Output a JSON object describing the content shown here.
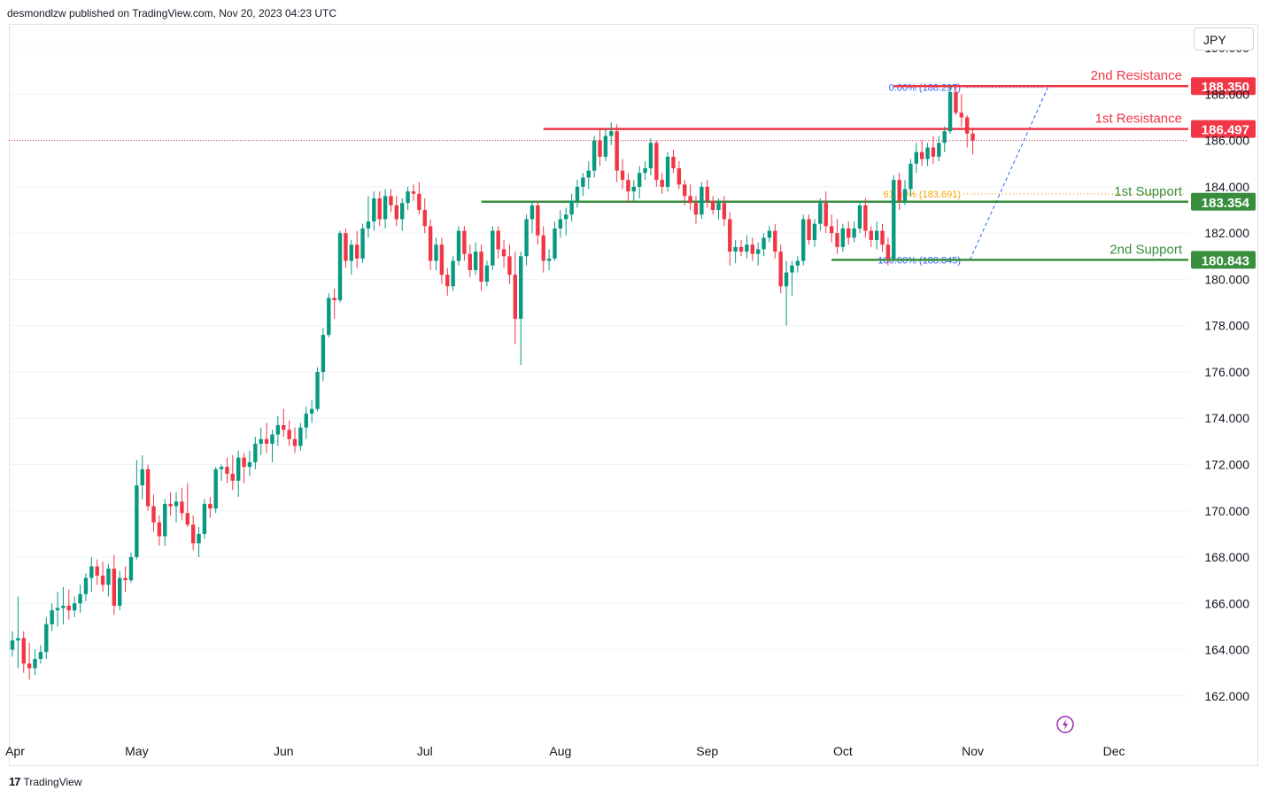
{
  "header": {
    "publisher": "desmondlzw published on TradingView.com, Nov 20, 2023 04:23 UTC"
  },
  "currency": "JPY",
  "footer": {
    "brand": "TradingView",
    "logo": "17"
  },
  "colors": {
    "up": "#089981",
    "down": "#f23645",
    "resistance": "#f23645",
    "support": "#388e3c",
    "fib": "#2962ff",
    "fib_mid": "#f7a600",
    "grid": "#f0f3fa"
  },
  "chart_data": {
    "type": "candlestick",
    "symbol_quote": "JPY",
    "ylim": [
      160.5,
      191.0
    ],
    "y_ticks": [
      "162.000",
      "164.000",
      "166.000",
      "168.000",
      "170.000",
      "172.000",
      "174.000",
      "176.000",
      "178.000",
      "180.000",
      "182.000",
      "184.000",
      "186.000",
      "188.000",
      "190.000"
    ],
    "x_labels": [
      "Apr",
      "May",
      "Jun",
      "Jul",
      "Aug",
      "Sep",
      "Oct",
      "Nov",
      "Dec"
    ],
    "last_price": 186.0,
    "levels": [
      {
        "name": "2nd Resistance",
        "value": "188.350",
        "kind": "resistance",
        "from_index": 156
      },
      {
        "name": "1st Resistance",
        "value": "186.497",
        "kind": "resistance",
        "from_index": 94
      },
      {
        "name": "1st Support",
        "value": "183.354",
        "kind": "support",
        "from_index": 83
      },
      {
        "name": "2nd Support",
        "value": "180.843",
        "kind": "support",
        "from_index": 145
      }
    ],
    "fib": [
      {
        "label": "0.00% (188.297)",
        "value": 188.297
      },
      {
        "label": "61.80% (183.691)",
        "value": 183.691
      },
      {
        "label": "100.00% (180.845)",
        "value": 180.845
      }
    ],
    "candles": [
      [
        164.0,
        164.8,
        163.7,
        164.4
      ],
      [
        164.4,
        166.3,
        163.2,
        164.5
      ],
      [
        164.5,
        164.8,
        163.0,
        163.4
      ],
      [
        163.4,
        164.3,
        162.7,
        163.2
      ],
      [
        163.2,
        164.0,
        162.9,
        163.6
      ],
      [
        163.6,
        164.2,
        163.4,
        163.9
      ],
      [
        163.9,
        165.4,
        163.6,
        165.1
      ],
      [
        165.1,
        166.0,
        164.8,
        165.7
      ],
      [
        165.7,
        166.5,
        165.0,
        165.8
      ],
      [
        165.8,
        166.7,
        165.1,
        165.9
      ],
      [
        165.9,
        166.6,
        165.3,
        165.7
      ],
      [
        165.7,
        166.3,
        165.4,
        166.0
      ],
      [
        166.0,
        166.8,
        165.6,
        166.4
      ],
      [
        166.4,
        167.3,
        166.1,
        167.1
      ],
      [
        167.1,
        168.0,
        166.5,
        167.6
      ],
      [
        167.6,
        167.9,
        166.8,
        167.2
      ],
      [
        167.2,
        167.8,
        166.5,
        166.8
      ],
      [
        166.8,
        167.7,
        166.3,
        167.5
      ],
      [
        167.5,
        168.1,
        165.5,
        165.9
      ],
      [
        165.9,
        167.4,
        165.7,
        167.1
      ],
      [
        167.1,
        167.6,
        166.5,
        167.0
      ],
      [
        167.0,
        168.2,
        166.9,
        168.0
      ],
      [
        168.0,
        172.2,
        167.9,
        171.1
      ],
      [
        171.1,
        172.4,
        170.5,
        171.8
      ],
      [
        171.8,
        172.0,
        170.0,
        170.2
      ],
      [
        170.2,
        170.7,
        169.1,
        169.5
      ],
      [
        169.5,
        169.8,
        168.5,
        168.9
      ],
      [
        168.9,
        170.5,
        168.5,
        170.3
      ],
      [
        170.3,
        170.8,
        169.8,
        170.2
      ],
      [
        170.2,
        170.8,
        169.5,
        170.4
      ],
      [
        170.4,
        171.0,
        169.6,
        169.9
      ],
      [
        169.9,
        171.2,
        169.3,
        169.4
      ],
      [
        169.4,
        169.8,
        168.3,
        168.6
      ],
      [
        168.6,
        169.3,
        168.0,
        169.0
      ],
      [
        169.0,
        170.5,
        168.8,
        170.3
      ],
      [
        170.3,
        170.6,
        169.7,
        170.1
      ],
      [
        170.1,
        171.9,
        169.9,
        171.8
      ],
      [
        171.8,
        172.0,
        171.3,
        171.9
      ],
      [
        171.9,
        172.3,
        171.2,
        171.6
      ],
      [
        171.6,
        172.4,
        170.9,
        171.3
      ],
      [
        171.3,
        172.6,
        170.6,
        172.3
      ],
      [
        172.3,
        172.5,
        171.2,
        171.9
      ],
      [
        171.9,
        172.6,
        171.5,
        172.1
      ],
      [
        172.1,
        173.2,
        171.8,
        172.9
      ],
      [
        172.9,
        173.6,
        172.4,
        173.1
      ],
      [
        173.1,
        173.8,
        172.5,
        172.9
      ],
      [
        172.9,
        173.5,
        172.1,
        173.3
      ],
      [
        173.3,
        174.1,
        172.8,
        173.7
      ],
      [
        173.7,
        174.4,
        173.2,
        173.5
      ],
      [
        173.5,
        173.9,
        172.8,
        173.1
      ],
      [
        173.1,
        173.6,
        172.5,
        172.8
      ],
      [
        172.8,
        173.8,
        172.6,
        173.6
      ],
      [
        173.6,
        174.5,
        173.1,
        174.2
      ],
      [
        174.2,
        174.8,
        173.8,
        174.4
      ],
      [
        174.4,
        176.2,
        174.3,
        176.0
      ],
      [
        176.0,
        177.9,
        175.6,
        177.6
      ],
      [
        177.6,
        179.4,
        177.5,
        179.2
      ],
      [
        179.2,
        179.6,
        178.3,
        179.1
      ],
      [
        179.1,
        182.1,
        179.0,
        182.0
      ],
      [
        182.0,
        182.2,
        180.5,
        180.8
      ],
      [
        180.8,
        181.7,
        180.2,
        181.5
      ],
      [
        181.5,
        182.1,
        180.5,
        180.9
      ],
      [
        180.9,
        182.4,
        180.7,
        182.2
      ],
      [
        182.2,
        183.6,
        181.8,
        182.5
      ],
      [
        182.5,
        183.8,
        182.1,
        183.5
      ],
      [
        183.5,
        183.8,
        182.3,
        182.6
      ],
      [
        182.6,
        183.9,
        182.2,
        183.6
      ],
      [
        183.6,
        183.9,
        182.9,
        183.2
      ],
      [
        183.2,
        183.6,
        182.3,
        182.6
      ],
      [
        182.6,
        183.5,
        182.1,
        183.3
      ],
      [
        183.3,
        184.0,
        183.0,
        183.8
      ],
      [
        183.8,
        184.1,
        183.4,
        183.7
      ],
      [
        183.7,
        184.2,
        182.8,
        183.0
      ],
      [
        183.0,
        183.5,
        182.0,
        182.3
      ],
      [
        182.3,
        182.6,
        180.4,
        180.8
      ],
      [
        180.8,
        181.8,
        180.4,
        181.5
      ],
      [
        181.5,
        181.8,
        179.8,
        180.2
      ],
      [
        180.2,
        180.5,
        179.3,
        179.7
      ],
      [
        179.7,
        181.0,
        179.5,
        180.8
      ],
      [
        180.8,
        182.3,
        180.6,
        182.1
      ],
      [
        182.1,
        182.3,
        180.8,
        181.1
      ],
      [
        181.1,
        181.5,
        180.1,
        180.4
      ],
      [
        180.4,
        181.6,
        180.2,
        181.2
      ],
      [
        181.2,
        181.5,
        179.5,
        179.9
      ],
      [
        179.9,
        180.8,
        179.7,
        180.6
      ],
      [
        180.6,
        182.3,
        180.4,
        182.1
      ],
      [
        182.1,
        182.3,
        180.9,
        181.3
      ],
      [
        181.3,
        181.7,
        180.5,
        181.0
      ],
      [
        181.0,
        181.5,
        179.8,
        180.2
      ],
      [
        180.2,
        181.2,
        177.2,
        178.3
      ],
      [
        178.3,
        181.2,
        176.3,
        181.0
      ],
      [
        181.0,
        182.8,
        180.6,
        182.6
      ],
      [
        182.6,
        183.4,
        182.0,
        183.2
      ],
      [
        183.2,
        183.4,
        181.5,
        181.9
      ],
      [
        181.9,
        182.3,
        180.3,
        180.8
      ],
      [
        180.8,
        181.3,
        180.4,
        180.9
      ],
      [
        180.9,
        182.5,
        180.8,
        182.2
      ],
      [
        182.2,
        183.0,
        181.8,
        182.6
      ],
      [
        182.6,
        183.1,
        181.9,
        182.8
      ],
      [
        182.8,
        183.7,
        182.5,
        183.4
      ],
      [
        183.4,
        184.3,
        183.1,
        184.0
      ],
      [
        184.0,
        184.6,
        183.6,
        184.4
      ],
      [
        184.4,
        185.1,
        183.9,
        184.7
      ],
      [
        184.7,
        186.2,
        184.4,
        186.0
      ],
      [
        186.0,
        186.5,
        184.9,
        185.3
      ],
      [
        185.3,
        186.5,
        185.1,
        186.2
      ],
      [
        186.2,
        186.8,
        185.8,
        186.4
      ],
      [
        186.4,
        186.7,
        184.2,
        184.7
      ],
      [
        184.7,
        185.2,
        183.9,
        184.3
      ],
      [
        184.3,
        184.6,
        183.3,
        183.8
      ],
      [
        183.8,
        184.3,
        183.4,
        184.0
      ],
      [
        184.0,
        184.9,
        183.5,
        184.6
      ],
      [
        184.6,
        185.1,
        184.3,
        184.8
      ],
      [
        184.8,
        186.1,
        184.5,
        185.9
      ],
      [
        185.9,
        186.0,
        184.0,
        184.3
      ],
      [
        184.3,
        184.6,
        183.7,
        184.0
      ],
      [
        184.0,
        185.5,
        183.8,
        185.3
      ],
      [
        185.3,
        185.6,
        184.6,
        184.8
      ],
      [
        184.8,
        185.1,
        183.9,
        184.1
      ],
      [
        184.1,
        184.3,
        183.2,
        183.6
      ],
      [
        183.6,
        184.1,
        183.0,
        183.3
      ],
      [
        183.3,
        183.6,
        182.4,
        182.8
      ],
      [
        182.8,
        184.2,
        182.6,
        184.0
      ],
      [
        184.0,
        184.3,
        183.1,
        183.4
      ],
      [
        183.4,
        183.6,
        182.8,
        183.0
      ],
      [
        183.0,
        183.5,
        182.6,
        183.3
      ],
      [
        183.3,
        183.6,
        182.3,
        182.6
      ],
      [
        182.6,
        182.9,
        180.6,
        181.2
      ],
      [
        181.2,
        181.7,
        180.7,
        181.4
      ],
      [
        181.4,
        181.7,
        181.0,
        181.2
      ],
      [
        181.2,
        181.9,
        180.9,
        181.5
      ],
      [
        181.5,
        181.8,
        180.8,
        181.1
      ],
      [
        181.1,
        181.6,
        180.6,
        181.3
      ],
      [
        181.3,
        182.0,
        181.0,
        181.8
      ],
      [
        181.8,
        182.3,
        181.6,
        182.1
      ],
      [
        182.1,
        182.4,
        180.9,
        181.2
      ],
      [
        181.2,
        181.5,
        179.4,
        179.7
      ],
      [
        179.7,
        180.8,
        178.0,
        180.3
      ],
      [
        180.3,
        180.8,
        179.3,
        180.6
      ],
      [
        180.6,
        181.0,
        180.3,
        180.8
      ],
      [
        180.8,
        182.8,
        180.6,
        182.6
      ],
      [
        182.6,
        182.8,
        181.5,
        181.7
      ],
      [
        181.7,
        182.6,
        181.4,
        182.4
      ],
      [
        182.4,
        183.5,
        182.1,
        183.3
      ],
      [
        183.3,
        183.8,
        182.0,
        182.3
      ],
      [
        182.3,
        182.8,
        181.6,
        182.0
      ],
      [
        182.0,
        182.6,
        181.1,
        181.4
      ],
      [
        181.4,
        182.4,
        181.2,
        182.2
      ],
      [
        182.2,
        182.5,
        181.5,
        181.8
      ],
      [
        181.8,
        182.5,
        181.6,
        182.2
      ],
      [
        182.2,
        183.4,
        182.0,
        183.2
      ],
      [
        183.2,
        183.5,
        181.8,
        182.1
      ],
      [
        182.1,
        182.3,
        181.4,
        181.7
      ],
      [
        181.7,
        182.5,
        181.3,
        182.1
      ],
      [
        182.1,
        182.4,
        181.2,
        181.5
      ],
      [
        181.5,
        181.8,
        180.6,
        180.9
      ],
      [
        180.9,
        184.5,
        180.8,
        184.3
      ],
      [
        184.3,
        184.6,
        183.0,
        183.4
      ],
      [
        183.4,
        184.3,
        183.2,
        183.9
      ],
      [
        183.9,
        185.2,
        183.6,
        185.0
      ],
      [
        185.0,
        185.9,
        184.6,
        185.5
      ],
      [
        185.5,
        186.0,
        184.9,
        185.2
      ],
      [
        185.2,
        185.9,
        184.9,
        185.7
      ],
      [
        185.7,
        186.2,
        185.0,
        185.3
      ],
      [
        185.3,
        186.2,
        185.1,
        185.9
      ],
      [
        185.9,
        186.6,
        185.5,
        186.4
      ],
      [
        186.4,
        188.4,
        186.3,
        188.1
      ],
      [
        188.1,
        188.4,
        187.1,
        187.2
      ],
      [
        187.2,
        188.0,
        186.6,
        187.0
      ],
      [
        187.0,
        187.1,
        185.7,
        186.3
      ],
      [
        186.3,
        186.5,
        185.4,
        186.0
      ]
    ]
  }
}
